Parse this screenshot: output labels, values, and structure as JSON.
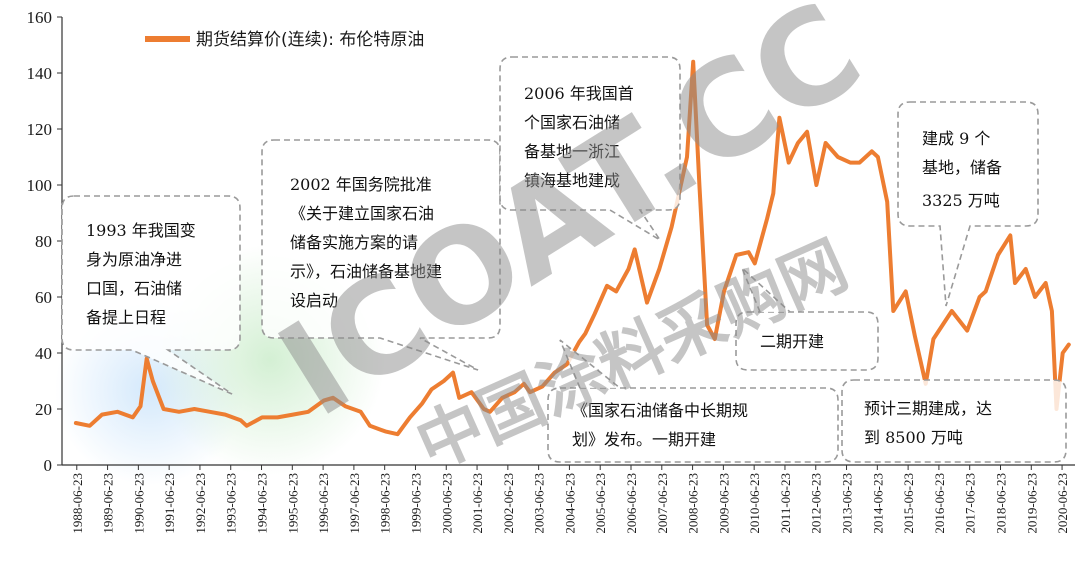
{
  "chart_data": {
    "type": "line",
    "legend": "期货结算价(连续): 布伦特原油",
    "ylim": [
      0,
      160
    ],
    "y_ticks": [
      0,
      20,
      40,
      60,
      80,
      100,
      120,
      140,
      160
    ],
    "x_ticks": [
      "1988-06-23",
      "1989-06-23",
      "1990-06-23",
      "1991-06-23",
      "1992-06-23",
      "1993-06-23",
      "1994-06-23",
      "1995-06-23",
      "1996-06-23",
      "1997-06-23",
      "1998-06-23",
      "1999-06-23",
      "2000-06-23",
      "2001-06-23",
      "2002-06-23",
      "2003-06-23",
      "2004-06-23",
      "2005-06-23",
      "2006-06-23",
      "2007-06-23",
      "2008-06-23",
      "2009-06-23",
      "2010-06-23",
      "2011-06-23",
      "2012-06-23",
      "2013-06-23",
      "2014-06-23",
      "2015-06-23",
      "2016-06-23",
      "2017-06-23",
      "2018-06-23",
      "2019-06-23",
      "2020-06-23"
    ],
    "line_color": "#ED7D31",
    "series": [
      {
        "name": "期货结算价(连续): 布伦特原油",
        "x": [
          1988.45,
          1988.9,
          1989.3,
          1989.8,
          1990.3,
          1990.55,
          1990.75,
          1990.95,
          1991.3,
          1991.8,
          1992.3,
          1992.8,
          1993.3,
          1993.8,
          1994.0,
          1994.5,
          1995.0,
          1995.5,
          1996.0,
          1996.5,
          1996.8,
          1997.2,
          1997.7,
          1998.0,
          1998.5,
          1998.9,
          1999.3,
          1999.7,
          2000.0,
          2000.4,
          2000.7,
          2000.9,
          2001.3,
          2001.7,
          2001.9,
          2002.3,
          2002.7,
          2003.0,
          2003.2,
          2003.6,
          2004.0,
          2004.4,
          2004.8,
          2005.0,
          2005.3,
          2005.7,
          2006.0,
          2006.4,
          2006.6,
          2007.0,
          2007.4,
          2007.8,
          2008.0,
          2008.3,
          2008.5,
          2008.7,
          2008.95,
          2009.2,
          2009.5,
          2009.9,
          2010.3,
          2010.5,
          2010.9,
          2011.1,
          2011.3,
          2011.6,
          2011.9,
          2012.2,
          2012.5,
          2012.8,
          2013.2,
          2013.6,
          2013.9,
          2014.3,
          2014.5,
          2014.8,
          2015.0,
          2015.4,
          2015.7,
          2016.05,
          2016.3,
          2016.6,
          2016.9,
          2017.4,
          2017.8,
          2018.0,
          2018.4,
          2018.8,
          2018.95,
          2019.3,
          2019.6,
          2019.95,
          2020.15,
          2020.3,
          2020.5,
          2020.7
        ],
        "values": [
          15,
          14,
          18,
          19,
          17,
          21,
          38,
          30,
          20,
          19,
          20,
          19,
          18,
          16,
          14,
          17,
          17,
          18,
          19,
          23,
          24,
          21,
          19,
          14,
          12,
          11,
          17,
          22,
          27,
          30,
          33,
          24,
          26,
          20,
          19,
          24,
          26,
          29,
          26,
          28,
          33,
          36,
          44,
          47,
          54,
          64,
          62,
          70,
          77,
          58,
          70,
          85,
          95,
          110,
          144,
          100,
          50,
          45,
          62,
          75,
          76,
          72,
          88,
          97,
          124,
          108,
          115,
          119,
          100,
          115,
          110,
          108,
          108,
          112,
          110,
          94,
          55,
          62,
          46,
          29,
          45,
          50,
          55,
          48,
          60,
          62,
          75,
          82,
          65,
          70,
          60,
          65,
          55,
          20,
          40,
          43
        ]
      }
    ],
    "annotations": [
      {
        "id": "a1993",
        "lines": [
          "1993 年我国变",
          "身为原油净进",
          "口国，石油储",
          "备提上日程"
        ]
      },
      {
        "id": "a2002",
        "lines": [
          "2002 年国务院批准",
          "《关于建立国家石油",
          "储备实施方案的请",
          "示》，石油储备基地建",
          "设启动"
        ]
      },
      {
        "id": "a2006",
        "lines": [
          "2006 年我国首",
          "个国家石油储",
          "备基地一浙江",
          "镇海基地建成"
        ]
      },
      {
        "id": "a9",
        "lines": [
          "建成 9 个",
          "基地，储备",
          "3325 万吨"
        ]
      },
      {
        "id": "aphase2",
        "lines": [
          "二期开建"
        ]
      },
      {
        "id": "aplan",
        "lines": [
          "《国家石油储备中长期规",
          "划》发布。一期开建"
        ]
      },
      {
        "id": "aphase3",
        "lines": [
          "预计三期建成，达",
          "到 8500 万吨"
        ]
      }
    ]
  },
  "watermark": {
    "latin": "ICOAT.CC",
    "chinese": "中国涂料采购网"
  }
}
